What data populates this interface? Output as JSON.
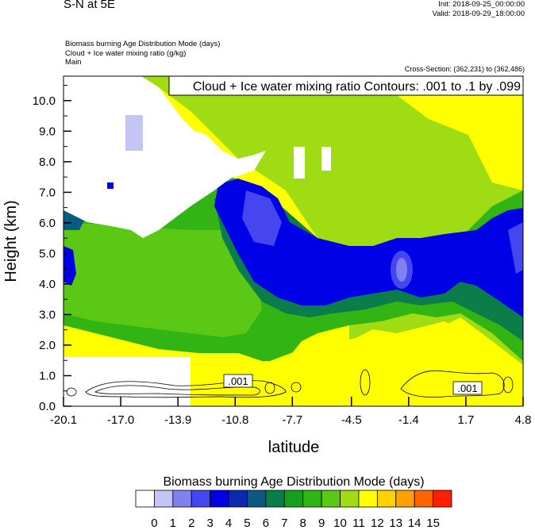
{
  "header": {
    "title": "S-N at 5E",
    "init": "Init: 2018-09-25_00:00:00",
    "valid": "Valid: 2018-09-29_18:00:00",
    "field1": "Biomass burning Age Distribution Mode   (days)",
    "field2": "Cloud + Ice water mixing ratio   (g/kg)",
    "field3": "Main",
    "cross_section": "Cross-Section: (362,231) to (362,486)"
  },
  "chart_data": {
    "type": "heatmap",
    "title": "",
    "xlabel": "latitude",
    "ylabel": "Height (km)",
    "xlim": [
      -20.1,
      4.8
    ],
    "ylim": [
      0.0,
      10.8
    ],
    "x_ticks": [
      "-20.1",
      "-17.0",
      "-13.9",
      "-10.8",
      "-7.7",
      "-4.5",
      "-1.4",
      "1.7",
      "4.8"
    ],
    "y_ticks": [
      "0.0",
      "1.0",
      "2.0",
      "3.0",
      "4.0",
      "5.0",
      "6.0",
      "7.0",
      "8.0",
      "9.0",
      "10.0"
    ],
    "contour_annotation": "Cloud + Ice water mixing ratio Contours: .001 to .1 by .099",
    "contour_labels": [
      ".001",
      ".001"
    ],
    "colorbar": {
      "title": "Biomass burning Age Distribution Mode  (days)",
      "labels": [
        "0",
        "1",
        "2",
        "3",
        "4",
        "5",
        "6",
        "7",
        "8",
        "9",
        "10",
        "11",
        "12",
        "13",
        "14",
        "15"
      ],
      "colors": [
        "#ffffff",
        "#c4c4f5",
        "#8080f0",
        "#4646f0",
        "#0000e6",
        "#0a28b4",
        "#0a5a82",
        "#0a7d4b",
        "#14a01e",
        "#32b414",
        "#5ac814",
        "#a0dc14",
        "#ffff00",
        "#ffd200",
        "#ffa000",
        "#ff6400",
        "#ff1e00"
      ]
    }
  }
}
